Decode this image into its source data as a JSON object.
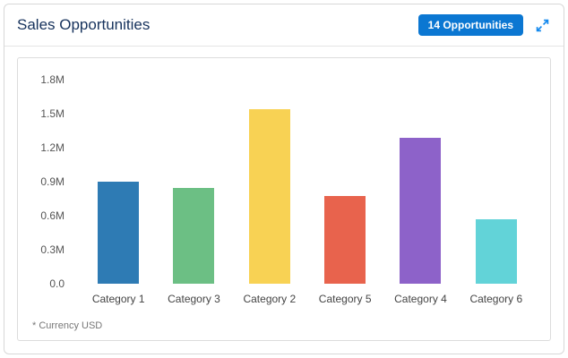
{
  "card": {
    "title": "Sales Opportunities",
    "badge_label": "14 Opportunities"
  },
  "footnote": "* Currency USD",
  "ui_colors": {
    "badge_background": "#0b77d2",
    "expand_icon": "#1589ee",
    "title_text": "#16325c"
  },
  "chart_data": {
    "type": "bar",
    "title": "Sales Opportunities",
    "categories": [
      "Category 1",
      "Category 3",
      "Category 2",
      "Category 5",
      "Category 4",
      "Category 6"
    ],
    "values": [
      0.9,
      0.85,
      1.54,
      0.78,
      1.29,
      0.57
    ],
    "unit": "M USD",
    "colors": [
      "#2e7bb4",
      "#6cbf84",
      "#f8d254",
      "#e8634d",
      "#8d62c9",
      "#62d3d8"
    ],
    "yticks": [
      "1.8M",
      "1.5M",
      "1.2M",
      "0.9M",
      "0.6M",
      "0.3M",
      "0.0"
    ],
    "ytick_values": [
      1.8,
      1.5,
      1.2,
      0.9,
      0.6,
      0.3,
      0.0
    ],
    "ylim": [
      0,
      1.8
    ],
    "xlabel": "",
    "ylabel": "",
    "grid": false,
    "legend": false
  }
}
